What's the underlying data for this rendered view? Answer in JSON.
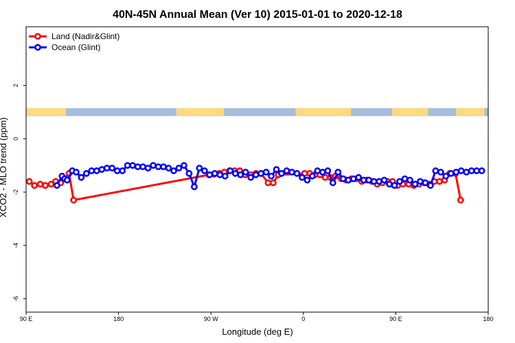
{
  "chart_data": {
    "type": "line",
    "title": "40N-45N Annual Mean (Ver 10)   2015-01-01 to 2020-12-18",
    "xlabel": "Longitude (deg E)",
    "ylabel": "XCO2 - MLO trend (ppm)",
    "xlim": [
      90,
      450
    ],
    "ylim": [
      -6.5,
      4.2
    ],
    "x_ticks": [
      90,
      162,
      234,
      306,
      378,
      450
    ],
    "x_tick_labels": [
      "90 E",
      "180",
      "90 W",
      "0",
      "90 E",
      "180"
    ],
    "y_ticks": [
      2,
      0,
      -2,
      -4,
      -6
    ],
    "y_tick_labels": [
      "2",
      "0",
      "-2",
      "-4",
      "-6"
    ],
    "grid": false,
    "legend_position": "top-left",
    "land_ocean_band": {
      "y_range": [
        0.85,
        1.15
      ],
      "land_color": "#FFD97F",
      "ocean_color": "#A6BEDD",
      "land_intervals": [
        [
          90,
          121
        ],
        [
          207,
          244
        ],
        [
          300,
          343
        ],
        [
          375,
          403
        ],
        [
          425,
          447
        ]
      ]
    },
    "series": [
      {
        "name": "Land (Nadir&Glint)",
        "color": "#FF0000",
        "x": [
          92.5,
          96.5,
          101,
          105,
          109.5,
          113,
          117,
          123.5,
          127,
          232.5,
          236.5,
          240.5,
          244.5,
          248.5,
          252.5,
          256.5,
          260.5,
          265,
          269,
          273,
          278.5,
          282.5,
          286.5,
          307,
          311,
          315,
          319,
          323,
          327,
          331,
          335.5,
          339.5,
          343.5,
          347.5,
          351.5,
          355.5,
          359.5,
          363.5,
          367.5,
          371.5,
          375.5,
          379.5,
          383.5,
          388,
          392,
          396,
          400,
          404,
          408,
          412,
          416,
          420,
          424.5,
          428.5
        ],
        "y": [
          -1.6,
          -1.75,
          -1.7,
          -1.75,
          -1.7,
          -1.6,
          -1.65,
          -1.3,
          -2.3,
          -1.35,
          -1.33,
          -1.3,
          -1.25,
          -1.2,
          -1.2,
          -1.2,
          -1.35,
          -1.35,
          -1.3,
          -1.3,
          -1.65,
          -1.65,
          -1.35,
          -1.3,
          -1.3,
          -1.35,
          -1.35,
          -1.45,
          -1.45,
          -1.4,
          -1.5,
          -1.55,
          -1.5,
          -1.5,
          -1.6,
          -1.55,
          -1.6,
          -1.7,
          -1.65,
          -1.6,
          -1.6,
          -1.75,
          -1.7,
          -1.7,
          -1.75,
          -1.7,
          -1.65,
          -1.7,
          -1.6,
          -1.6,
          -1.55,
          -1.3,
          -1.3,
          -2.3
        ]
      },
      {
        "name": "Ocean (Glint)",
        "color": "#0000FF",
        "x": [
          114,
          118,
          120,
          122,
          126,
          129,
          133,
          137,
          141,
          145,
          149,
          153,
          157,
          161,
          165,
          169,
          173,
          177,
          181,
          185,
          189,
          193,
          197,
          201,
          205,
          209,
          213,
          217,
          221,
          225,
          229,
          233,
          237,
          241,
          245,
          249,
          253,
          257,
          261,
          265,
          269,
          273,
          277,
          281,
          285,
          289,
          293,
          297,
          301,
          305,
          309,
          313,
          317,
          321,
          325,
          329,
          333,
          337,
          341,
          345,
          349,
          353,
          357,
          361,
          365,
          369,
          373,
          377,
          381,
          385,
          389,
          393,
          397,
          401,
          405,
          409,
          413,
          417,
          421,
          425,
          429,
          433,
          437,
          441,
          445
        ],
        "y": [
          -1.75,
          -1.4,
          -1.5,
          -1.55,
          -1.2,
          -1.25,
          -1.45,
          -1.3,
          -1.2,
          -1.2,
          -1.15,
          -1.1,
          -1.1,
          -1.2,
          -1.2,
          -1.0,
          -1.0,
          -1.05,
          -1.05,
          -1.1,
          -1.0,
          -1.05,
          -1.05,
          -1.1,
          -1.2,
          -1.1,
          -1.0,
          -1.3,
          -1.8,
          -1.1,
          -1.2,
          -1.35,
          -1.3,
          -1.35,
          -1.4,
          -1.2,
          -1.3,
          -1.35,
          -1.25,
          -1.45,
          -1.35,
          -1.3,
          -1.25,
          -1.4,
          -1.15,
          -1.3,
          -1.2,
          -1.25,
          -1.3,
          -1.45,
          -1.55,
          -1.4,
          -1.2,
          -1.25,
          -1.2,
          -1.65,
          -1.25,
          -1.5,
          -1.55,
          -1.5,
          -1.45,
          -1.55,
          -1.55,
          -1.6,
          -1.6,
          -1.55,
          -1.7,
          -1.75,
          -1.6,
          -1.5,
          -1.55,
          -1.7,
          -1.6,
          -1.65,
          -1.75,
          -1.2,
          -1.25,
          -1.4,
          -1.3,
          -1.25,
          -1.2,
          -1.25,
          -1.2,
          -1.2,
          -1.2
        ]
      }
    ]
  }
}
